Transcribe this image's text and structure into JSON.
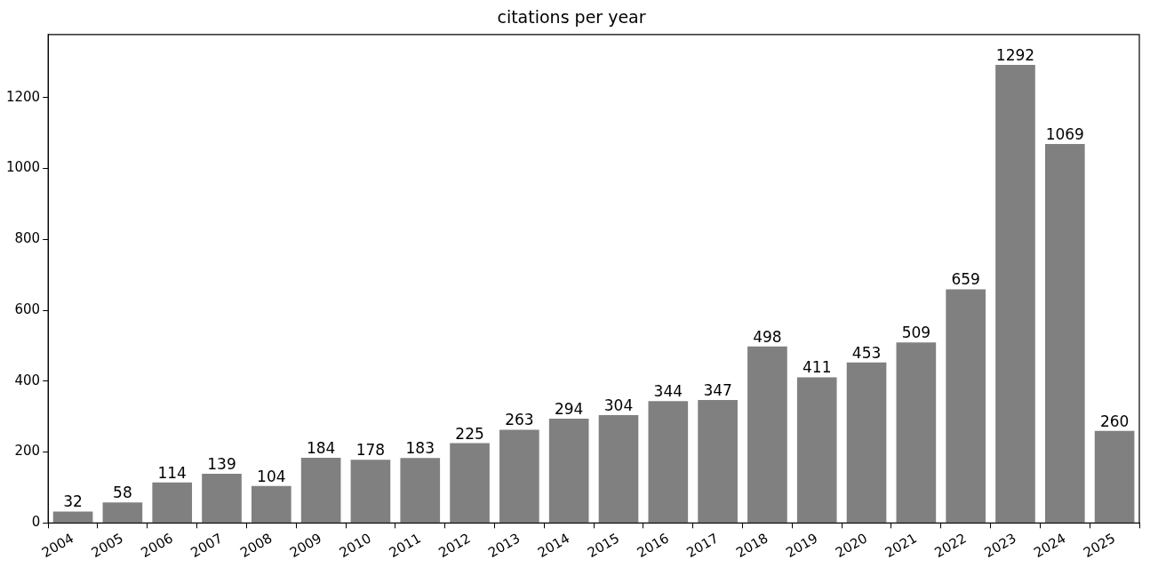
{
  "chart_data": {
    "type": "bar",
    "title": "citations per year",
    "categories": [
      "2004",
      "2005",
      "2006",
      "2007",
      "2008",
      "2009",
      "2010",
      "2011",
      "2012",
      "2013",
      "2014",
      "2015",
      "2016",
      "2017",
      "2018",
      "2019",
      "2020",
      "2021",
      "2022",
      "2023",
      "2024",
      "2025"
    ],
    "values": [
      32,
      58,
      114,
      139,
      104,
      184,
      178,
      183,
      225,
      263,
      294,
      304,
      344,
      347,
      498,
      411,
      453,
      509,
      659,
      1292,
      1069,
      260
    ],
    "color": "#808080",
    "ylim": [
      0,
      1378
    ],
    "yticks": [
      0,
      200,
      400,
      600,
      800,
      1000,
      1200
    ],
    "grid": false,
    "legend": false,
    "data_labels": true
  }
}
